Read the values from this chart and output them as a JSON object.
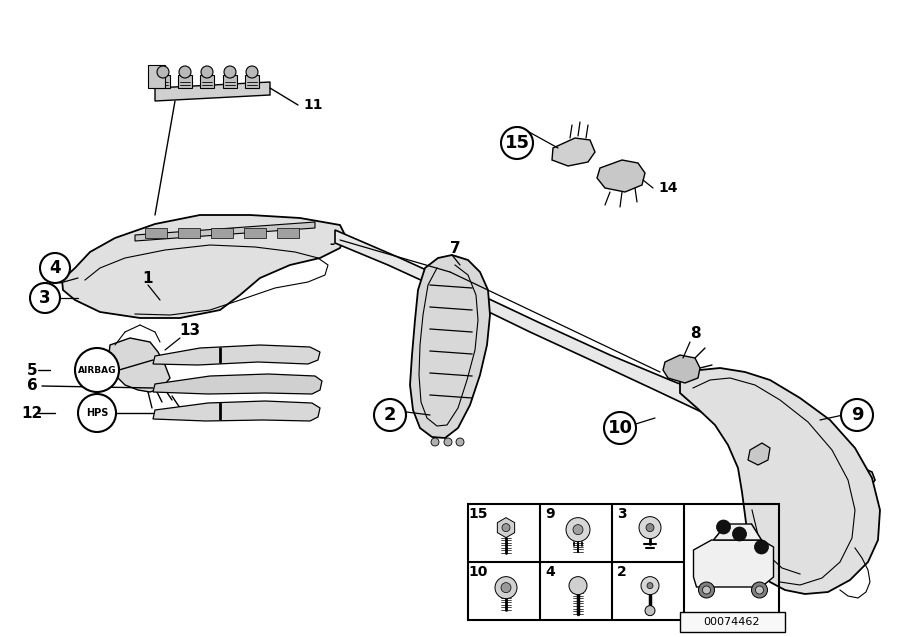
{
  "bg_color": "#ffffff",
  "line_color": "#000000",
  "diagram_id": "00074462",
  "airbag_label": "AIRBAG",
  "hps_label": "HPS"
}
